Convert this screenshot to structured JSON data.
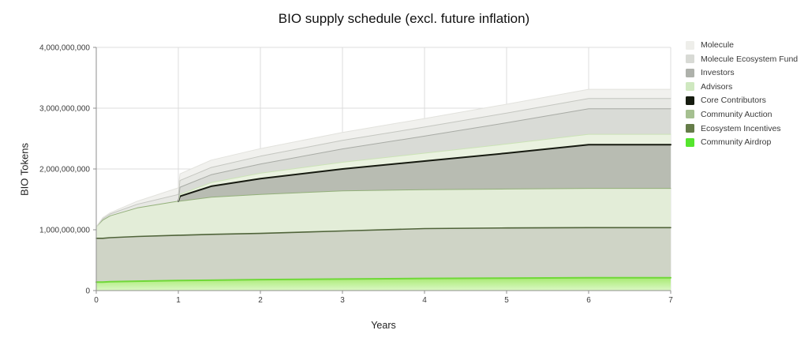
{
  "colors": {
    "background": "#ffffff",
    "grid": "#dcdcdc",
    "axis": "#8f8f8f",
    "tick_text": "#3c3c3c",
    "title_text": "#111111"
  },
  "chart_data": {
    "type": "area",
    "stacked": true,
    "title": "BIO supply schedule (excl. future inflation)",
    "xlabel": "Years",
    "ylabel": "BIO Tokens",
    "xlim": [
      0,
      7
    ],
    "ylim": [
      0,
      4000000000
    ],
    "grid": true,
    "legend_position": "right",
    "x": [
      0,
      0.08,
      0.17,
      0.5,
      1,
      1.02,
      1.4,
      2,
      3,
      4,
      5,
      6,
      7
    ],
    "xticks": [
      0,
      1,
      2,
      3,
      4,
      5,
      6,
      7
    ],
    "xtick_labels": [
      "0",
      "1",
      "2",
      "3",
      "4",
      "5",
      "6",
      "7"
    ],
    "yticks": [
      0,
      1000000000,
      2000000000,
      3000000000,
      4000000000
    ],
    "ytick_labels": [
      "0",
      "1,000,000,000",
      "2,000,000,000",
      "3,000,000,000",
      "4,000,000,000"
    ],
    "series_bottom_to_top": [
      {
        "name": "community_airdrop",
        "label": "Community Airdrop",
        "legend_color": "#55e52e",
        "stroke": "#70d838",
        "stroke_width": 2,
        "fill_gradient": [
          "#a8ea72",
          "#dcf8c6"
        ],
        "values": [
          140000000,
          140000000,
          145000000,
          155000000,
          165000000,
          165000000,
          170000000,
          180000000,
          190000000,
          200000000,
          205000000,
          210000000,
          210000000
        ]
      },
      {
        "name": "ecosystem_incentives",
        "label": "Ecosystem Incentives",
        "legend_color": "#657c49",
        "fill": "#cfd4c6",
        "stroke": "#50643a",
        "stroke_width": 1.6,
        "values": [
          720000000,
          720000000,
          725000000,
          735000000,
          745000000,
          745000000,
          755000000,
          760000000,
          790000000,
          820000000,
          825000000,
          825000000,
          825000000
        ]
      },
      {
        "name": "community_auction",
        "label": "Community Auction",
        "legend_color": "#a5c090",
        "fill": "#e3edd8",
        "stroke": "#93b07a",
        "stroke_width": 1,
        "values": [
          190000000,
          300000000,
          360000000,
          470000000,
          560000000,
          560000000,
          610000000,
          640000000,
          660000000,
          640000000,
          640000000,
          645000000,
          645000000
        ]
      },
      {
        "name": "core_contributors",
        "label": "Core Contributors",
        "legend_color": "#161c10",
        "fill": "#b8bcb2",
        "stroke": "#161a10",
        "stroke_width": 2,
        "values": [
          0,
          0,
          0,
          0,
          0,
          80000000,
          180000000,
          260000000,
          360000000,
          470000000,
          590000000,
          720000000,
          720000000
        ]
      },
      {
        "name": "advisors",
        "label": "Advisors",
        "legend_color": "#cfe8c0",
        "fill": "#eaf2e0",
        "stroke": "#cbe3b6",
        "stroke_width": 1,
        "values": [
          0,
          0,
          0,
          0,
          0,
          30000000,
          60000000,
          90000000,
          110000000,
          130000000,
          150000000,
          170000000,
          170000000
        ]
      },
      {
        "name": "investors",
        "label": "Investors",
        "legend_color": "#aeb1ab",
        "fill": "#d9dbd6",
        "stroke": "#a8aba5",
        "stroke_width": 1,
        "values": [
          0,
          0,
          0,
          0,
          0,
          120000000,
          130000000,
          150000000,
          220000000,
          280000000,
          350000000,
          420000000,
          420000000
        ]
      },
      {
        "name": "molecule_ecosystem_fund",
        "label": "Molecule Ecosystem Fund",
        "legend_color": "#d8dad5",
        "fill": "#e7e8e4",
        "stroke": "#c4c6c0",
        "stroke_width": 1,
        "values": [
          0,
          20000000,
          30000000,
          60000000,
          110000000,
          110000000,
          120000000,
          130000000,
          140000000,
          150000000,
          160000000,
          170000000,
          170000000
        ]
      },
      {
        "name": "molecule",
        "label": "Molecule",
        "legend_color": "#eeeeea",
        "fill": "#f1f1ee",
        "stroke": "#e2e2dd",
        "stroke_width": 1,
        "values": [
          0,
          20000000,
          20000000,
          50000000,
          110000000,
          110000000,
          120000000,
          125000000,
          130000000,
          140000000,
          145000000,
          150000000,
          150000000
        ]
      }
    ]
  }
}
